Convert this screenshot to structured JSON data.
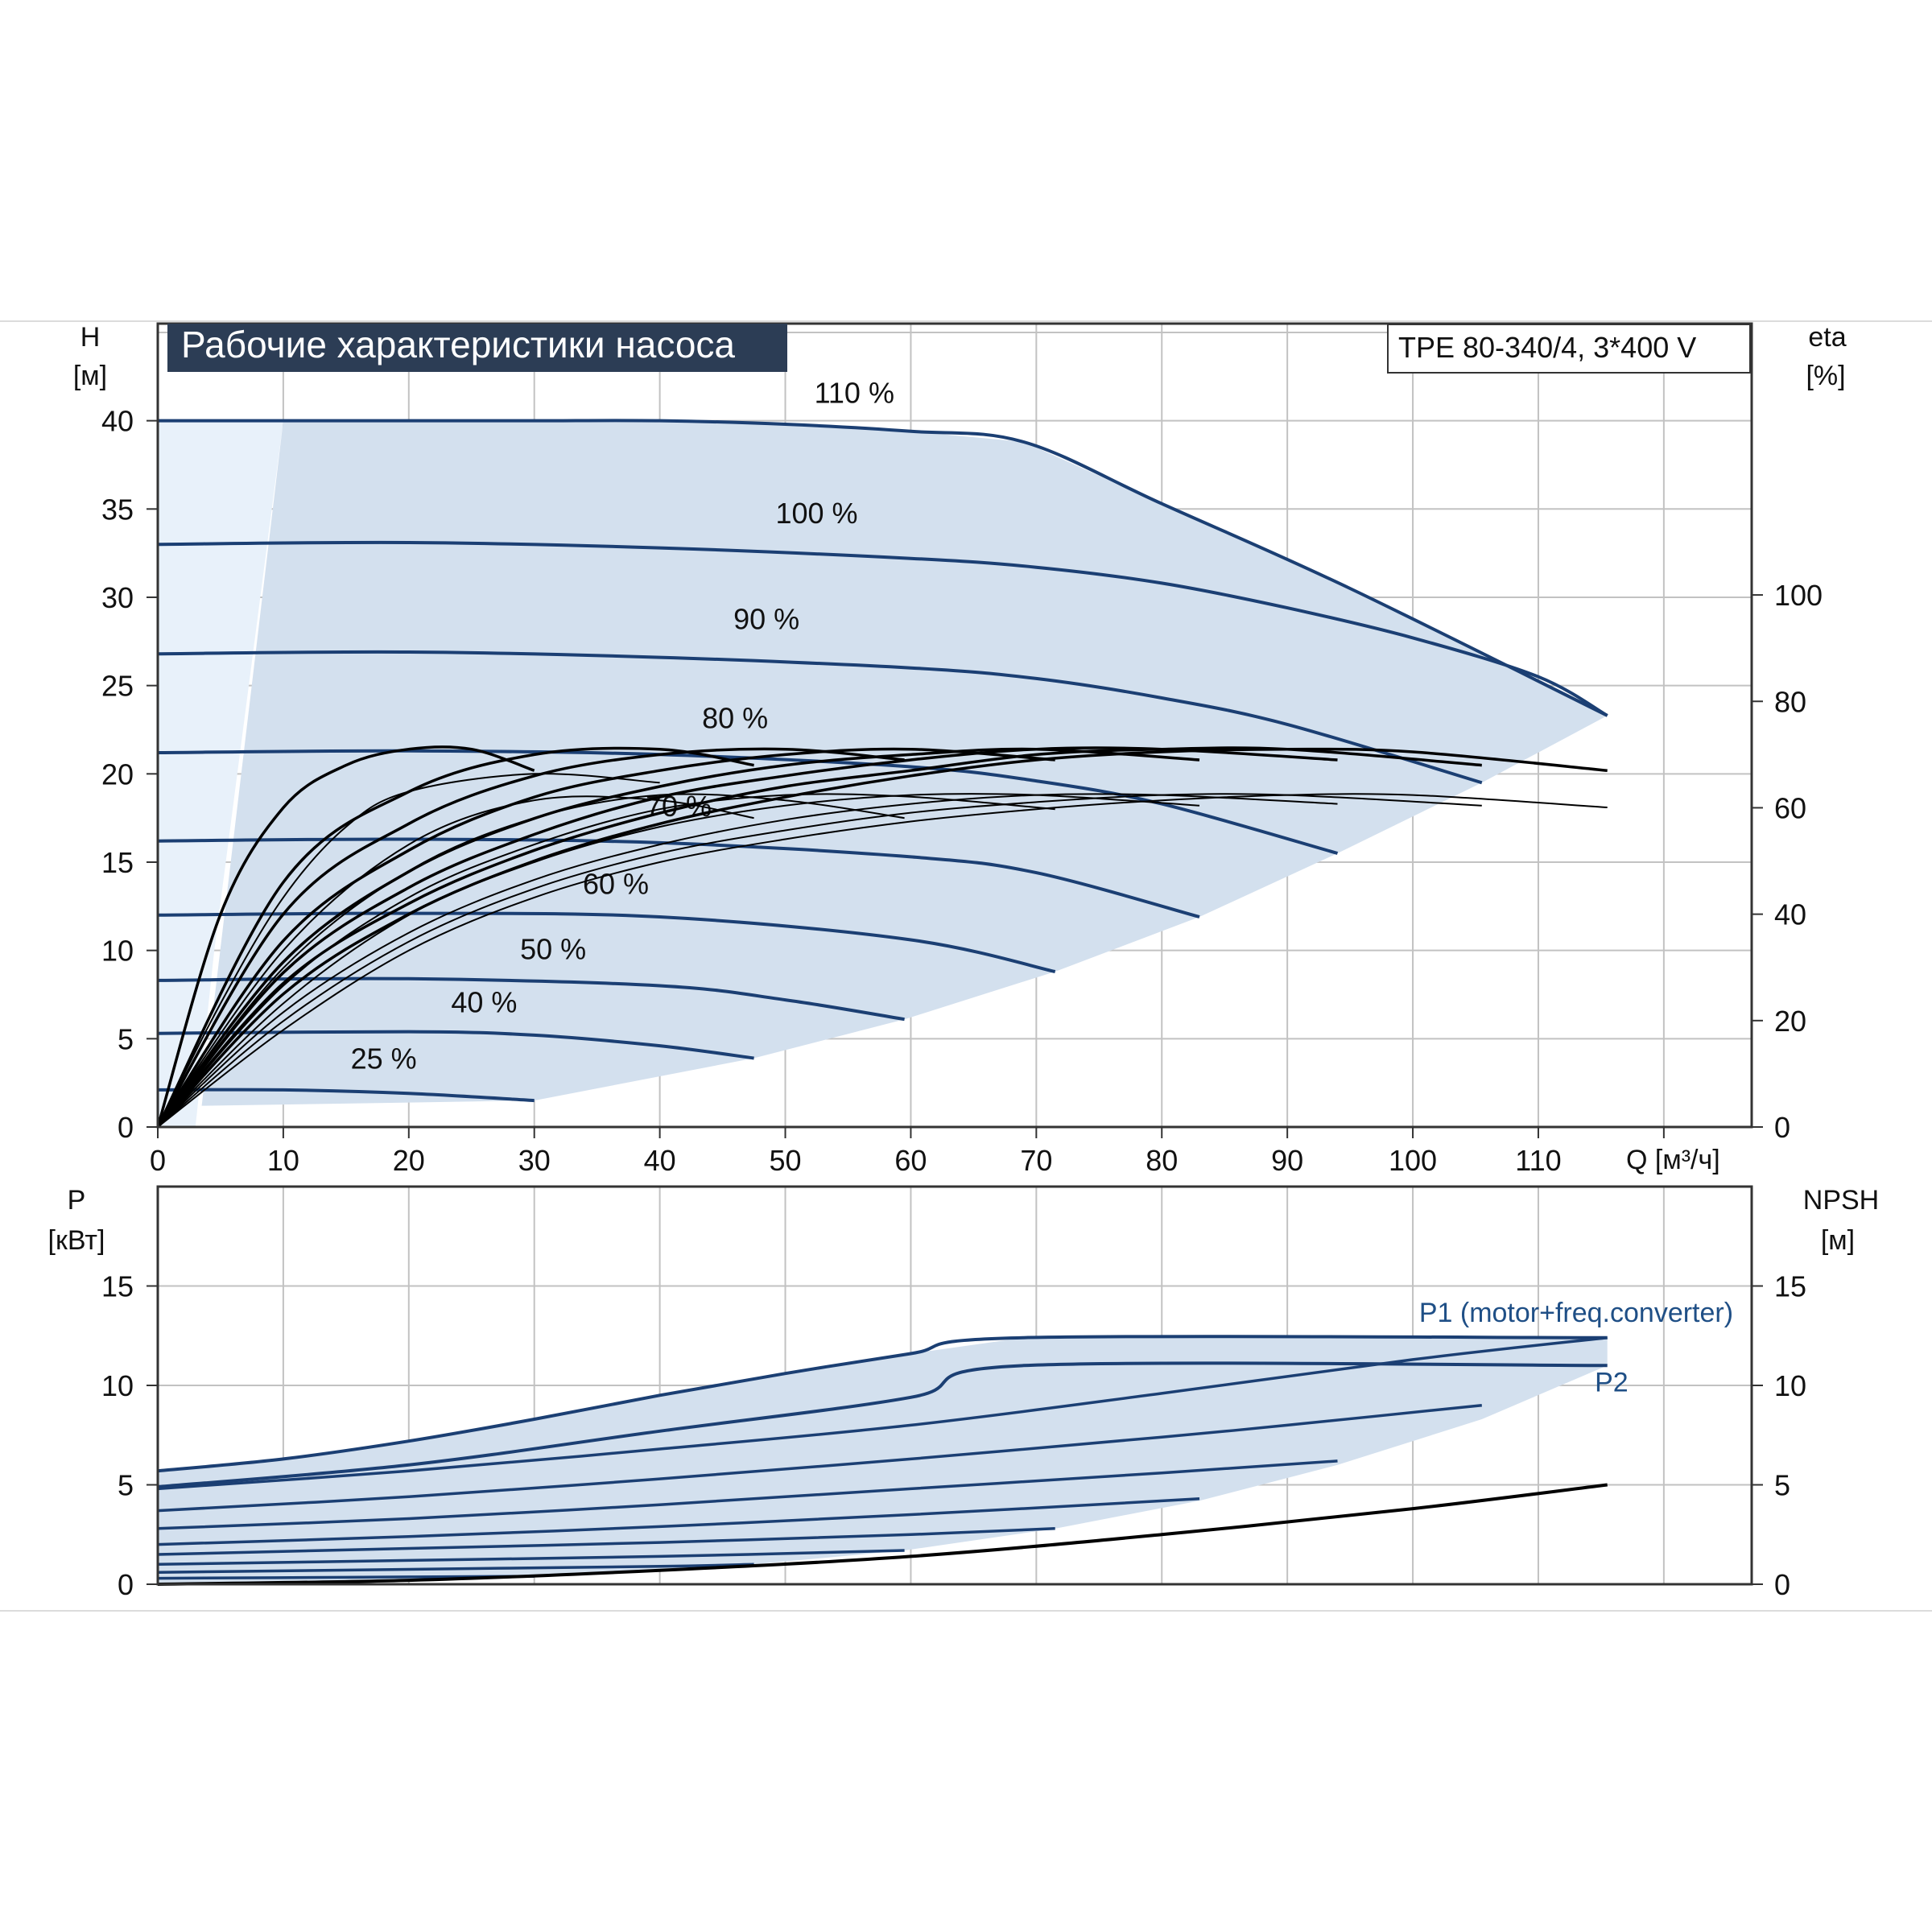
{
  "colors": {
    "curve_blue": "#1b3f73",
    "band_fill": "#d3e0ee",
    "band_fill_light": "#e8f1fa",
    "grid": "#c2c2c2",
    "frame": "#333333",
    "efficiency": "#000000",
    "title_bg": "#2c3d55",
    "title_text": "#ffffff",
    "label_blue": "#1f4f86"
  },
  "header": {
    "title": "Рабочие характеристики насоса",
    "model": "TPE 80-340/4, 3*400 V"
  },
  "chart_data": [
    {
      "type": "line",
      "panel": "head",
      "ylabel": "H",
      "ylabel_unit": "[м]",
      "y2label": "eta",
      "y2label_unit": "[%]",
      "xlabel": "Q [м³/ч]",
      "xlim": [
        0,
        127
      ],
      "ylim": [
        0,
        45.5
      ],
      "y2lim": [
        0,
        151
      ],
      "x_ticks": [
        "0",
        "10",
        "20",
        "30",
        "40",
        "50",
        "60",
        "70",
        "80",
        "90",
        "100",
        "110"
      ],
      "y_ticks": [
        "0",
        "5",
        "10",
        "15",
        "20",
        "25",
        "30",
        "35",
        "40"
      ],
      "y2_ticks": [
        "0",
        "20",
        "40",
        "60",
        "80",
        "100"
      ],
      "grid": true,
      "speed_labels": [
        {
          "text": "110 %",
          "x": 55.5,
          "y": 41.0
        },
        {
          "text": "100 %",
          "x": 52.5,
          "y": 34.2
        },
        {
          "text": "90 %",
          "x": 48.5,
          "y": 28.2
        },
        {
          "text": "80 %",
          "x": 46.0,
          "y": 22.6
        },
        {
          "text": "70 %",
          "x": 41.5,
          "y": 17.6
        },
        {
          "text": "60 %",
          "x": 36.5,
          "y": 13.2
        },
        {
          "text": "50 %",
          "x": 31.5,
          "y": 9.5
        },
        {
          "text": "40 %",
          "x": 26.0,
          "y": 6.5
        },
        {
          "text": "25 %",
          "x": 18.0,
          "y": 3.3
        }
      ],
      "series": [
        {
          "name": "110 %",
          "x": [
            0,
            10,
            20,
            30,
            40,
            50,
            60,
            69,
            80,
            95,
            115.5
          ],
          "y": [
            40,
            40,
            40,
            40,
            40,
            39.8,
            39.4,
            38.8,
            35.3,
            30.5,
            23.3
          ]
        },
        {
          "name": "100 %",
          "x": [
            0,
            20,
            40,
            60,
            70,
            80,
            90,
            100,
            110,
            115.5
          ],
          "y": [
            33,
            33.1,
            32.8,
            32.2,
            31.7,
            30.8,
            29.4,
            27.7,
            25.5,
            23.3
          ]
        },
        {
          "name": "90 %",
          "x": [
            0,
            20,
            40,
            60,
            70,
            80,
            90,
            105.5
          ],
          "y": [
            26.8,
            26.9,
            26.6,
            26.0,
            25.4,
            24.3,
            22.8,
            19.5
          ]
        },
        {
          "name": "80 %",
          "x": [
            0,
            20,
            40,
            60,
            70,
            80,
            94
          ],
          "y": [
            21.2,
            21.3,
            21.1,
            20.4,
            19.6,
            18.3,
            15.5
          ]
        },
        {
          "name": "70 %",
          "x": [
            0,
            20,
            40,
            60,
            70,
            83
          ],
          "y": [
            16.2,
            16.3,
            16.1,
            15.3,
            14.4,
            11.9
          ]
        },
        {
          "name": "60 %",
          "x": [
            0,
            20,
            40,
            60,
            71.5
          ],
          "y": [
            12.0,
            12.1,
            11.9,
            10.6,
            8.8
          ]
        },
        {
          "name": "50 %",
          "x": [
            0,
            20,
            40,
            50,
            59.5
          ],
          "y": [
            8.3,
            8.4,
            8.0,
            7.2,
            6.1
          ]
        },
        {
          "name": "40 %",
          "x": [
            0,
            20,
            30,
            40,
            47.5
          ],
          "y": [
            5.3,
            5.4,
            5.2,
            4.6,
            3.9
          ]
        },
        {
          "name": "25 %",
          "x": [
            0,
            10,
            20,
            30
          ],
          "y": [
            2.1,
            2.1,
            1.9,
            1.5
          ]
        }
      ],
      "efficiency_curves": [
        {
          "x": [
            0,
            5,
            10,
            15,
            20,
            25,
            30
          ],
          "y": [
            0,
            40,
            60,
            68,
            71,
            71,
            67
          ]
        },
        {
          "x": [
            0,
            10,
            20,
            30,
            40,
            47.5
          ],
          "y": [
            0,
            46,
            63,
            70,
            71,
            68
          ]
        },
        {
          "x": [
            0,
            10,
            20,
            30,
            40,
            50,
            59.5
          ],
          "y": [
            0,
            40,
            57,
            66,
            70,
            71,
            69
          ]
        },
        {
          "x": [
            0,
            10,
            20,
            30,
            40,
            50,
            60,
            71.5
          ],
          "y": [
            0,
            35,
            52,
            62,
            67,
            70,
            71,
            69
          ]
        },
        {
          "x": [
            0,
            10,
            20,
            30,
            40,
            50,
            60,
            70,
            83
          ],
          "y": [
            0,
            31,
            48,
            58,
            64,
            68,
            70,
            71,
            69
          ]
        },
        {
          "x": [
            0,
            10,
            20,
            30,
            40,
            50,
            60,
            70,
            80,
            94
          ],
          "y": [
            0,
            29,
            45,
            55,
            62,
            66,
            69,
            71,
            71,
            69
          ]
        },
        {
          "x": [
            0,
            10,
            20,
            30,
            40,
            50,
            60,
            70,
            80,
            90,
            105.5
          ],
          "y": [
            0,
            27,
            42,
            52,
            59,
            64,
            67,
            70,
            71,
            71,
            68
          ]
        },
        {
          "x": [
            0,
            10,
            20,
            30,
            40,
            50,
            60,
            70,
            80,
            90,
            100,
            115.5
          ],
          "y": [
            0,
            25,
            40,
            50,
            57,
            62,
            66,
            69,
            70.5,
            71,
            70.5,
            67
          ]
        },
        {
          "x": [
            0,
            5,
            10,
            15,
            20,
            30,
            40
          ],
          "y": [
            0,
            7,
            13,
            17,
            19,
            20,
            19.5
          ]
        },
        {
          "x": [
            0,
            10,
            20,
            30,
            40,
            47.5
          ],
          "y": [
            0,
            10,
            16,
            18.5,
            18.5,
            17.5
          ]
        },
        {
          "x": [
            0,
            10,
            20,
            30,
            40,
            50,
            59.5
          ],
          "y": [
            0,
            9,
            14.5,
            17.5,
            18.8,
            18.5,
            17.5
          ]
        },
        {
          "x": [
            0,
            10,
            20,
            30,
            40,
            50,
            60,
            71.5
          ],
          "y": [
            0,
            8,
            13,
            16,
            18,
            18.8,
            18.7,
            18
          ]
        },
        {
          "x": [
            0,
            10,
            20,
            30,
            40,
            50,
            60,
            70,
            83
          ],
          "y": [
            0,
            7,
            12,
            15,
            17,
            18.2,
            18.8,
            18.8,
            18.2
          ]
        },
        {
          "x": [
            0,
            10,
            20,
            30,
            40,
            50,
            60,
            70,
            80,
            94
          ],
          "y": [
            0,
            6.5,
            11,
            14,
            16,
            17.4,
            18.3,
            18.8,
            18.8,
            18.3
          ]
        },
        {
          "x": [
            0,
            10,
            20,
            30,
            40,
            50,
            60,
            70,
            80,
            90,
            105.5
          ],
          "y": [
            0,
            6,
            10.5,
            13.5,
            15.5,
            16.8,
            17.8,
            18.4,
            18.8,
            18.8,
            18.2
          ]
        },
        {
          "x": [
            0,
            10,
            20,
            30,
            40,
            50,
            60,
            70,
            80,
            90,
            100,
            115.5
          ],
          "y": [
            0,
            5.5,
            10,
            13,
            15,
            16.3,
            17.3,
            18,
            18.5,
            18.8,
            18.8,
            18.1
          ]
        }
      ],
      "efficiency_note": "first eight efficiency_curves are in eta % (right axis); remaining eight are in H units (left axis)"
    },
    {
      "type": "line",
      "panel": "power",
      "ylabel": "P",
      "ylabel_unit": "[кВт]",
      "y2label": "NPSH",
      "y2label_unit": "[м]",
      "xlim": [
        0,
        127
      ],
      "ylim": [
        0,
        20
      ],
      "y2lim": [
        0,
        20
      ],
      "y_ticks": [
        "0",
        "5",
        "10",
        "15"
      ],
      "y2_ticks": [
        "0",
        "5",
        "10",
        "15"
      ],
      "grid": true,
      "curve_labels": [
        {
          "text": "P1 (motor+freq.converter)",
          "x": 100.5,
          "y": 13.2
        },
        {
          "text": "P2",
          "x": 114.5,
          "y": 9.7
        }
      ],
      "series": [
        {
          "name": "P1 (motor+freq.converter)",
          "x": [
            0,
            10,
            20,
            30,
            40,
            50,
            60,
            69,
            115.5
          ],
          "y": [
            5.7,
            6.3,
            7.2,
            8.3,
            9.5,
            10.6,
            11.6,
            12.4,
            12.4
          ]
        },
        {
          "name": "P2",
          "x": [
            0,
            20,
            40,
            60,
            69,
            115.5
          ],
          "y": [
            4.9,
            6.0,
            7.7,
            9.4,
            11.0,
            11.0
          ]
        },
        {
          "x": [
            0,
            20,
            40,
            60,
            80,
            100,
            115.5
          ],
          "y": [
            4.8,
            5.7,
            6.8,
            8.0,
            9.6,
            11.3,
            12.4
          ]
        },
        {
          "x": [
            0,
            20,
            40,
            60,
            80,
            90,
            105.5
          ],
          "y": [
            3.7,
            4.4,
            5.3,
            6.3,
            7.4,
            8.0,
            9.0
          ]
        },
        {
          "x": [
            0,
            20,
            40,
            60,
            80,
            94
          ],
          "y": [
            2.8,
            3.3,
            4.0,
            4.8,
            5.6,
            6.2
          ]
        },
        {
          "x": [
            0,
            20,
            40,
            60,
            83
          ],
          "y": [
            2.0,
            2.4,
            2.9,
            3.5,
            4.3
          ]
        },
        {
          "x": [
            0,
            20,
            40,
            60,
            71.5
          ],
          "y": [
            1.5,
            1.8,
            2.1,
            2.5,
            2.8
          ]
        },
        {
          "x": [
            0,
            20,
            40,
            59.5
          ],
          "y": [
            1.0,
            1.2,
            1.4,
            1.7
          ]
        },
        {
          "x": [
            0,
            20,
            40,
            47.5
          ],
          "y": [
            0.6,
            0.75,
            0.9,
            1.0
          ]
        },
        {
          "x": [
            0,
            15,
            30
          ],
          "y": [
            0.3,
            0.35,
            0.4
          ]
        }
      ],
      "npsh_curve": {
        "x": [
          0,
          20,
          40,
          60,
          80,
          100,
          115.5
        ],
        "y": [
          0.0,
          0.2,
          0.7,
          1.4,
          2.5,
          3.8,
          5.0
        ]
      }
    }
  ]
}
